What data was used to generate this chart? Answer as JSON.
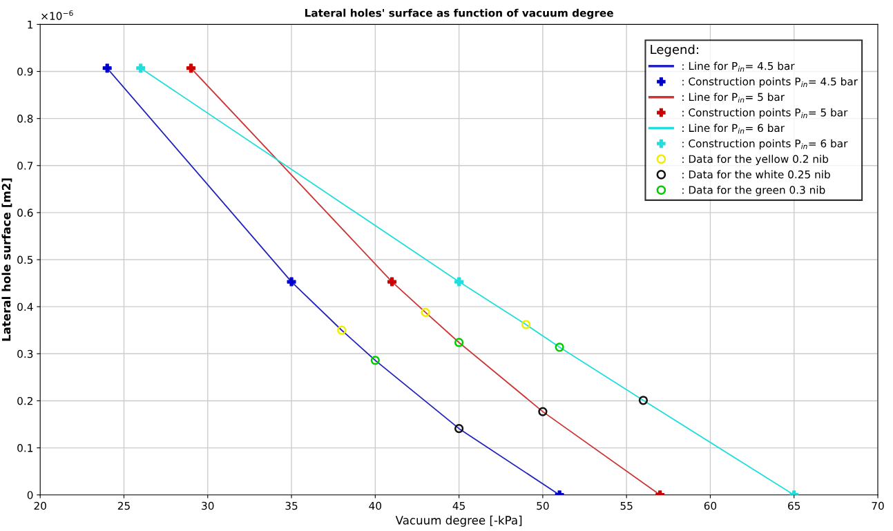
{
  "chart_data": {
    "type": "line",
    "title": "Lateral holes' surface as function of vacuum degree",
    "xlabel": "Vacuum degree [-kPa]",
    "ylabel": "Lateral hole surface [m2]",
    "legend_title": "Legend:",
    "legend": "top right",
    "grid": true,
    "xlim": [
      20,
      70
    ],
    "xticks": [
      20,
      25,
      30,
      35,
      40,
      45,
      50,
      55,
      60,
      65,
      70
    ],
    "ylim": [
      0,
      1
    ],
    "yticks": [
      0,
      0.1,
      0.2,
      0.3,
      0.4,
      0.5,
      0.6,
      0.7,
      0.8,
      0.9,
      1
    ],
    "annotations": [
      "×10$^{−6}$"
    ],
    "series": [
      {
        "name": ": Line for P$_{in}$= 4.5 bar",
        "color": "#2222bb",
        "marker": "none",
        "x": [
          24,
          35,
          38,
          40,
          45,
          51
        ],
        "values": [
          0.907,
          0.453,
          0.35,
          0.286,
          0.141,
          0
        ]
      },
      {
        "type": "scatter",
        "name": ": Construction points P$_{in}$= 4.5 bar",
        "color": "#0000cc",
        "marker": "cross",
        "x": [
          24,
          35,
          51
        ],
        "values": [
          0.907,
          0.453,
          0
        ]
      },
      {
        "name": ": Line for P$_{in}$= 5 bar",
        "color": "#cc3333",
        "marker": "none",
        "x": [
          29,
          41,
          43,
          45,
          50,
          57
        ],
        "values": [
          0.907,
          0.453,
          0.388,
          0.324,
          0.177,
          0
        ]
      },
      {
        "type": "scatter",
        "name": ": Construction points P$_{in}$= 5 bar",
        "color": "#cc0000",
        "marker": "cross",
        "x": [
          29,
          41,
          57
        ],
        "values": [
          0.907,
          0.453,
          0
        ]
      },
      {
        "name": ": Line for P$_{in}$= 6 bar",
        "color": "#22dddd",
        "marker": "none",
        "x": [
          26,
          45,
          49,
          51,
          56,
          65
        ],
        "values": [
          0.907,
          0.453,
          0.362,
          0.314,
          0.201,
          0
        ]
      },
      {
        "type": "scatter",
        "name": ": Construction points P$_{in}$= 6 bar",
        "color": "#22dddd",
        "marker": "cross",
        "x": [
          26,
          45,
          65
        ],
        "values": [
          0.907,
          0.453,
          0
        ]
      },
      {
        "type": "scatter",
        "name": ": Data for the yellow 0.2 nib",
        "color": "#eeee00",
        "marker": "circle",
        "x": [
          38,
          43,
          49
        ],
        "values": [
          0.35,
          0.388,
          0.362
        ]
      },
      {
        "type": "scatter",
        "name": ": Data for the white 0.25 nib",
        "color": "#111111",
        "marker": "circle",
        "x": [
          45,
          50,
          56
        ],
        "values": [
          0.141,
          0.177,
          0.201
        ]
      },
      {
        "type": "scatter",
        "name": ": Data for the green 0.3 nib",
        "color": "#00cc00",
        "marker": "circle",
        "x": [
          40,
          45,
          51
        ],
        "values": [
          0.286,
          0.324,
          0.314
        ]
      }
    ]
  }
}
